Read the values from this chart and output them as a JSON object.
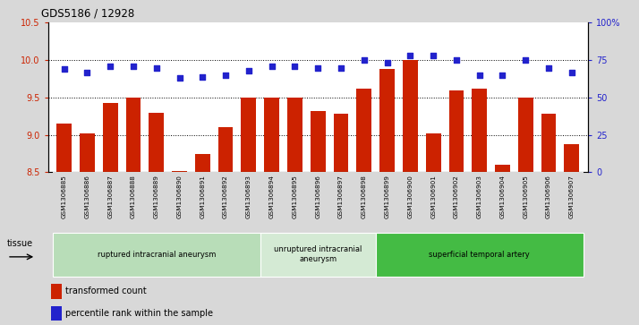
{
  "title": "GDS5186 / 12928",
  "samples": [
    "GSM1306885",
    "GSM1306886",
    "GSM1306887",
    "GSM1306888",
    "GSM1306889",
    "GSM1306890",
    "GSM1306891",
    "GSM1306892",
    "GSM1306893",
    "GSM1306894",
    "GSM1306895",
    "GSM1306896",
    "GSM1306897",
    "GSM1306898",
    "GSM1306899",
    "GSM1306900",
    "GSM1306901",
    "GSM1306902",
    "GSM1306903",
    "GSM1306904",
    "GSM1306905",
    "GSM1306906",
    "GSM1306907"
  ],
  "bar_values": [
    9.15,
    9.02,
    9.43,
    9.5,
    9.3,
    8.52,
    8.75,
    9.1,
    9.5,
    9.5,
    9.5,
    9.32,
    9.28,
    9.62,
    9.88,
    10.0,
    9.02,
    9.6,
    9.62,
    8.6,
    9.5,
    9.28,
    8.88
  ],
  "percentile_values": [
    69,
    67,
    71,
    71,
    70,
    63,
    64,
    65,
    68,
    71,
    71,
    70,
    70,
    75,
    73,
    78,
    78,
    75,
    65,
    65,
    75,
    70,
    67
  ],
  "bar_color": "#cc2200",
  "dot_color": "#2222cc",
  "bar_bottom": 8.5,
  "ylim_left": [
    8.5,
    10.5
  ],
  "ylim_right": [
    0,
    100
  ],
  "yticks_left": [
    8.5,
    9.0,
    9.5,
    10.0,
    10.5
  ],
  "yticks_right": [
    0,
    25,
    50,
    75,
    100
  ],
  "ytick_labels_right": [
    "0",
    "25",
    "50",
    "75",
    "100%"
  ],
  "groups": [
    {
      "label": "ruptured intracranial aneurysm",
      "start": 0,
      "end": 8,
      "color": "#b8ddb8"
    },
    {
      "label": "unruptured intracranial\naneurysm",
      "start": 9,
      "end": 13,
      "color": "#d4ead4"
    },
    {
      "label": "superficial temporal artery",
      "start": 14,
      "end": 22,
      "color": "#44bb44"
    }
  ],
  "tissue_label": "tissue",
  "legend_bar_label": "transformed count",
  "legend_dot_label": "percentile rank within the sample",
  "fig_bg": "#d8d8d8",
  "plot_bg": "#ffffff",
  "grid_color": "#000000",
  "grid_linestyle": ":"
}
